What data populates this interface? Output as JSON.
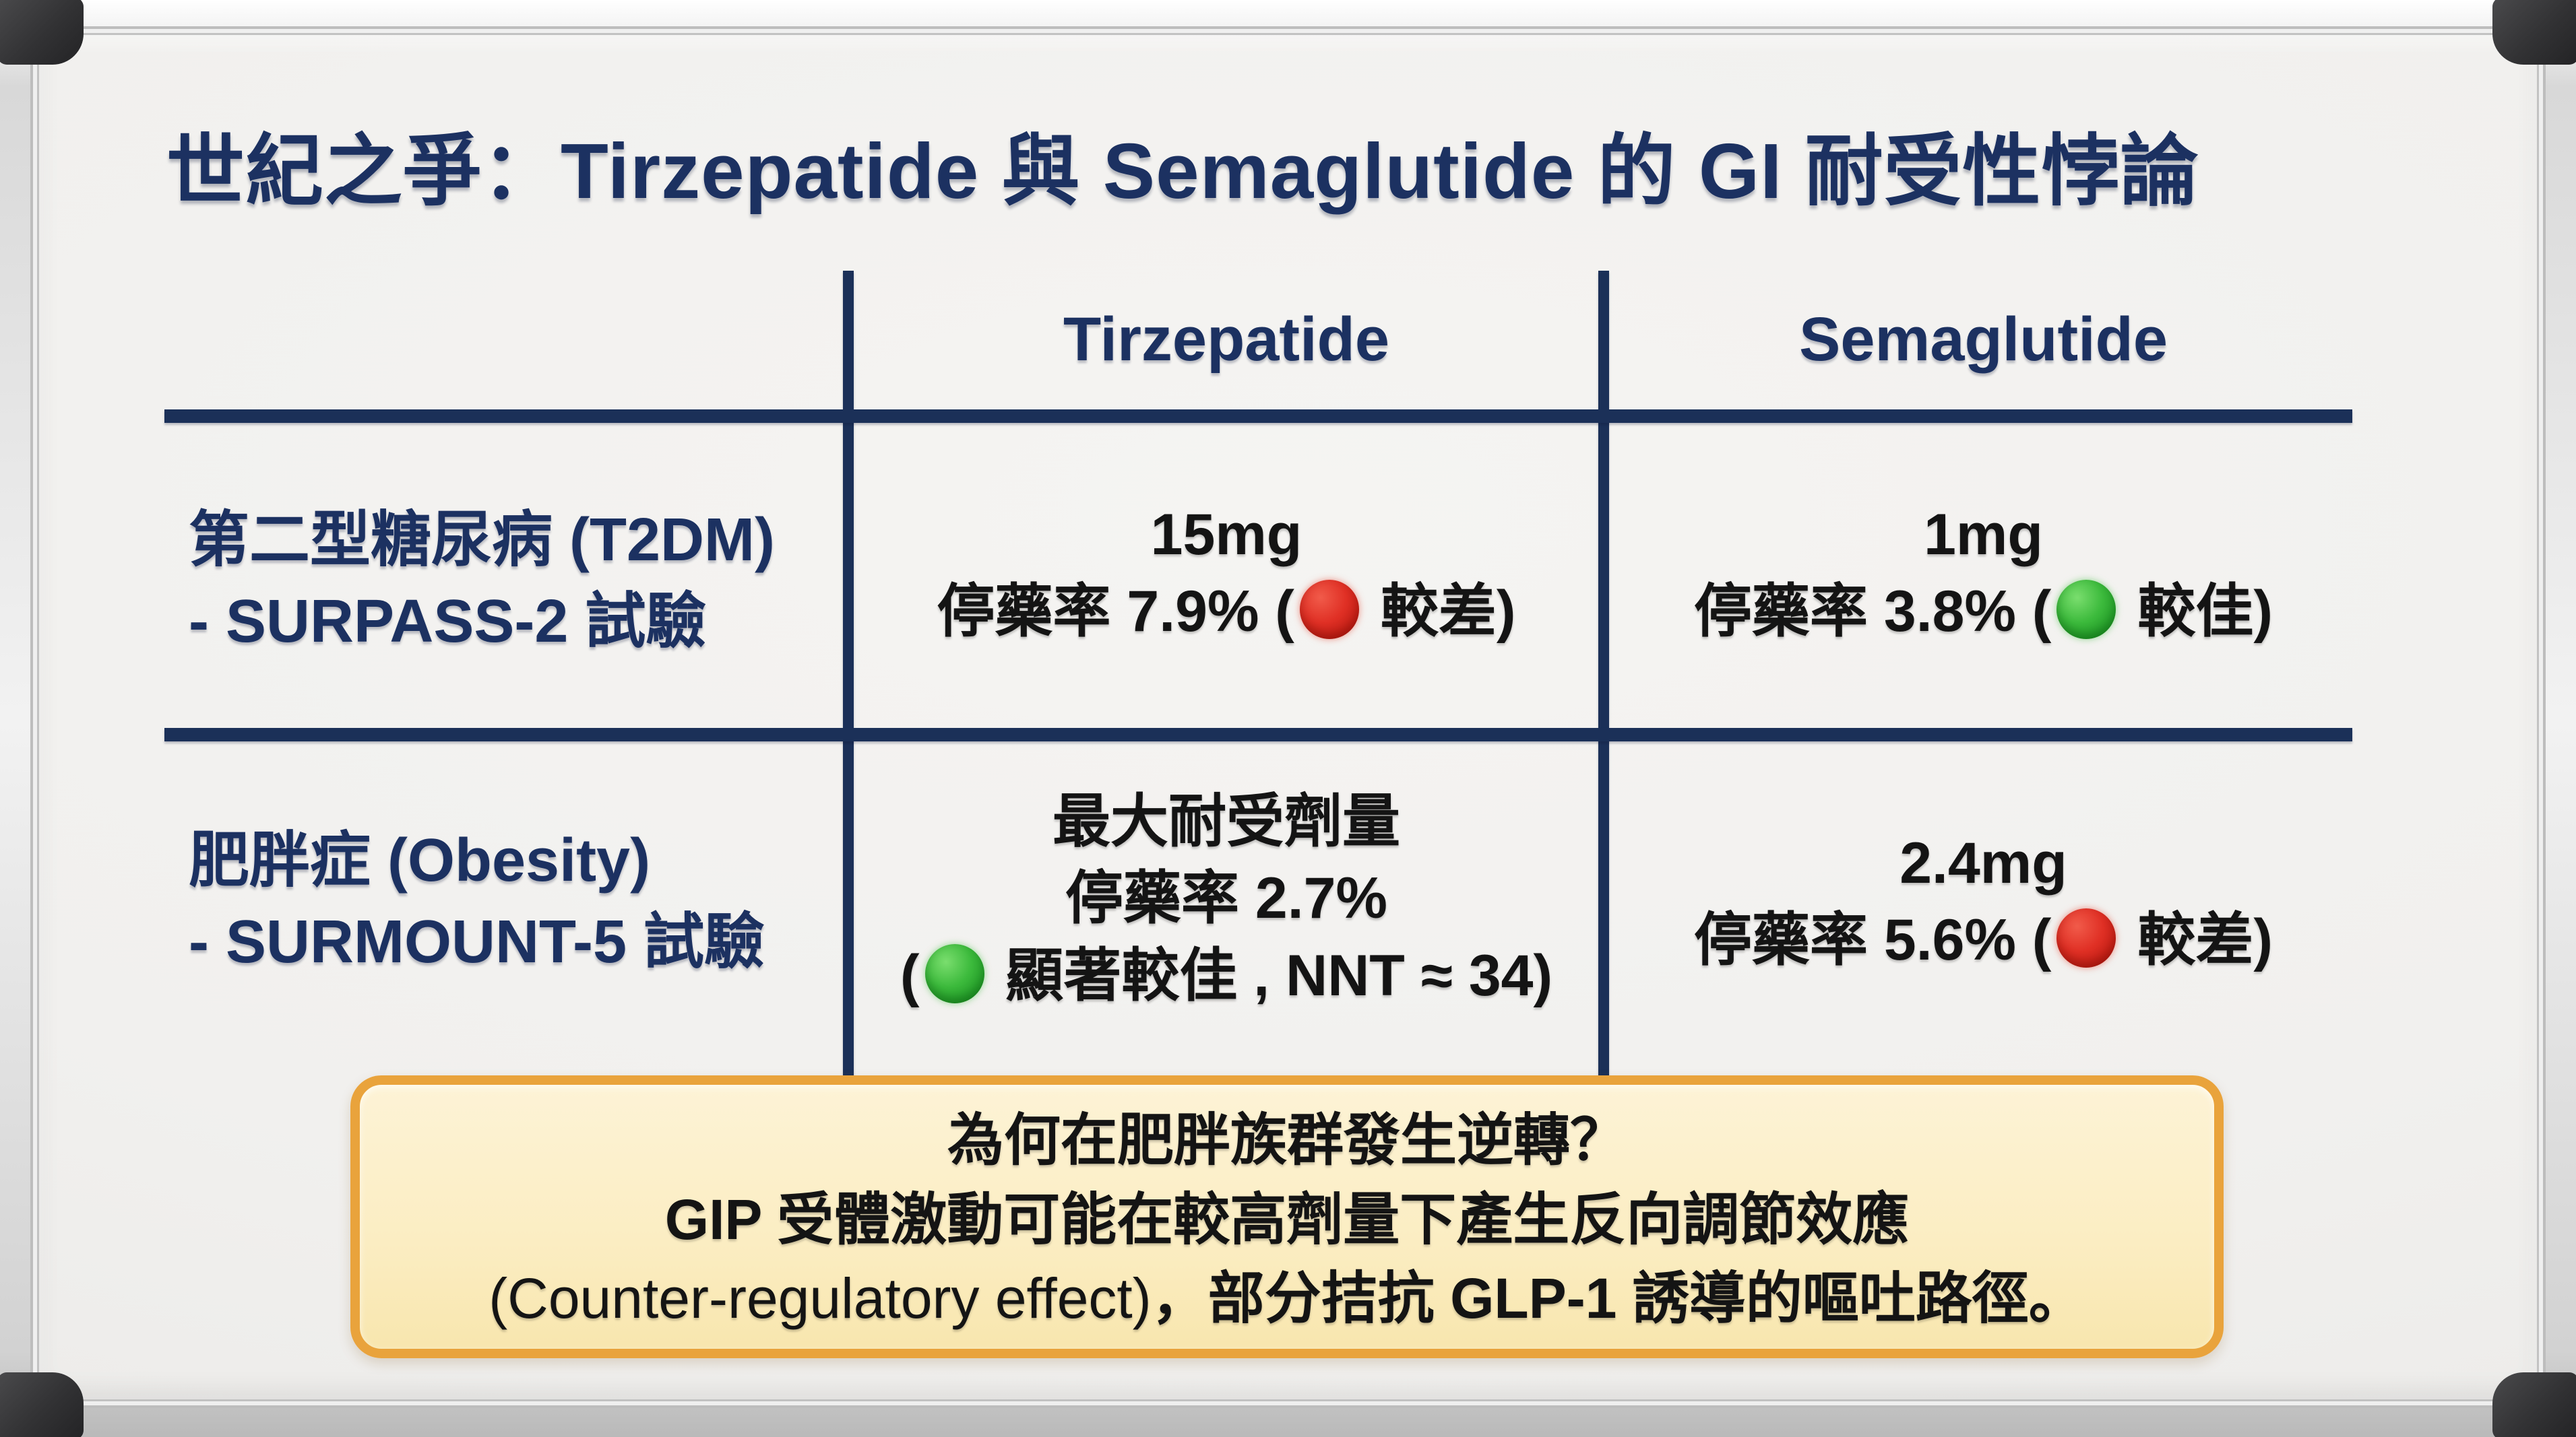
{
  "title": "世紀之爭：Tirzepatide 與 Semaglutide 的 GI 耐受性悖論",
  "colors": {
    "heading_navy": "#1c3161",
    "grid_navy": "#1b3058",
    "worse_red": "#d7281e",
    "better_green": "#2eb82e",
    "note_fill": "#fbedc2",
    "note_border": "#e9a33c",
    "board_surface": "#f1f0ee"
  },
  "table": {
    "headers": [
      "Tirzepatide",
      "Semaglutide"
    ],
    "rows": [
      {
        "label_line1": "第二型糖尿病 (T2DM)",
        "label_line2": "- SURPASS-2 試驗",
        "cells": [
          {
            "lines": [
              "15mg"
            ],
            "result_prefix": "停藥率 7.9% (",
            "result_icon": "red-circle",
            "result_suffix": " 較差)"
          },
          {
            "lines": [
              "1mg"
            ],
            "result_prefix": "停藥率 3.8% (",
            "result_icon": "green-circle",
            "result_suffix": " 較佳)"
          }
        ]
      },
      {
        "label_line1": "肥胖症 (Obesity)",
        "label_line2": "- SURMOUNT-5 試驗",
        "cells": [
          {
            "lines": [
              "最大耐受劑量",
              "停藥率 2.7%"
            ],
            "result_prefix": "(",
            "result_icon": "green-circle",
            "result_suffix": " 顯著較佳 , NNT ≈ 34)"
          },
          {
            "lines": [
              "2.4mg"
            ],
            "result_prefix": "停藥率 5.6% (",
            "result_icon": "red-circle",
            "result_suffix": " 較差)"
          }
        ]
      }
    ]
  },
  "note": {
    "line1": "為何在肥胖族群發生逆轉？",
    "line2": "GIP 受體激動可能在較高劑量下產生反向調節效應",
    "line3_en": "(Counter-regulatory effect)",
    "line3_zh": "，部分拮抗 GLP-1 誘導的嘔吐路徑。"
  }
}
